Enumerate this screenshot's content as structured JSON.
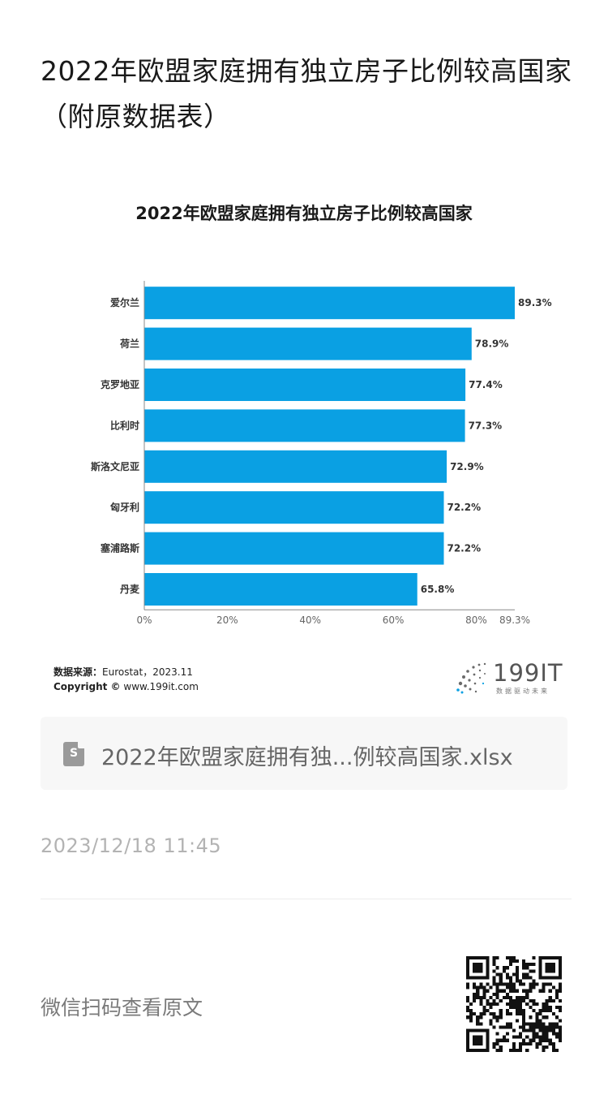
{
  "article": {
    "title": "2022年欧盟家庭拥有独立房子比例较高国家（附原数据表）"
  },
  "chart_data": {
    "type": "bar",
    "orientation": "horizontal",
    "title": "2022年欧盟家庭拥有独立房子比例较高国家",
    "categories": [
      "爱尔兰",
      "荷兰",
      "克罗地亚",
      "比利时",
      "斯洛文尼亚",
      "匈牙利",
      "塞浦路斯",
      "丹麦"
    ],
    "values": [
      89.3,
      78.9,
      77.4,
      77.3,
      72.9,
      72.2,
      72.2,
      65.8
    ],
    "value_labels": [
      "89.3%",
      "78.9%",
      "77.4%",
      "77.3%",
      "72.9%",
      "72.2%",
      "72.2%",
      "65.8%"
    ],
    "xlim": [
      0,
      89.3
    ],
    "x_ticks": [
      0,
      20,
      40,
      60,
      80,
      89.3
    ],
    "x_tick_labels": [
      "0%",
      "20%",
      "40%",
      "60%",
      "80%",
      "89.3%"
    ],
    "bar_color": "#0aa0e3",
    "grid": false,
    "legend": "none"
  },
  "source": {
    "label": "数据来源：",
    "value": "Eurostat，2023.11",
    "copyright_label": "Copyright ©",
    "copyright_value": "www.199it.com"
  },
  "logo": {
    "text": "199IT",
    "tagline": "数据驱动未来"
  },
  "attachment": {
    "icon": "spreadsheet-file-icon",
    "icon_letter": "S",
    "file_name": "2022年欧盟家庭拥有独...例较高国家.xlsx"
  },
  "meta": {
    "timestamp": "2023/12/18 11:45"
  },
  "footer": {
    "scan_label": "微信扫码查看原文",
    "qr_icon": "qr-code-icon"
  }
}
